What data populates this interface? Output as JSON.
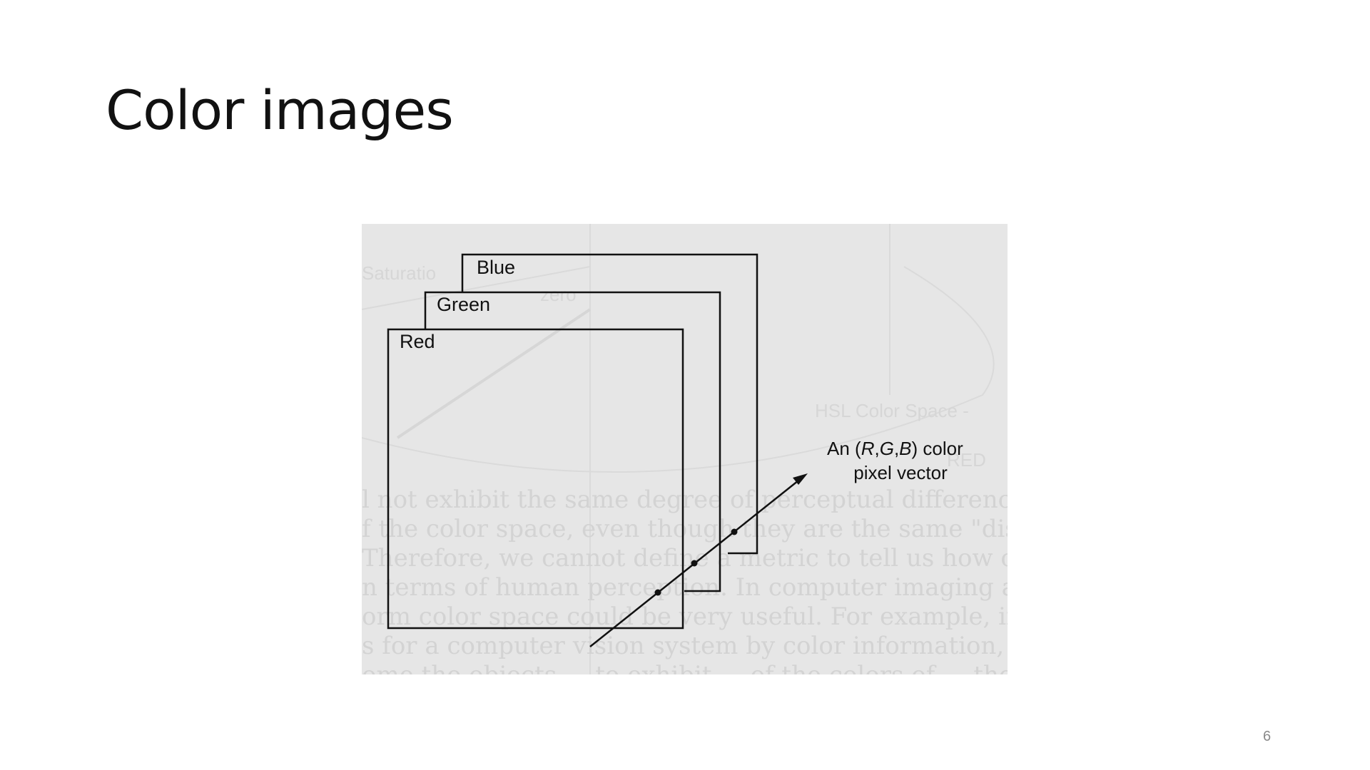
{
  "slide": {
    "title": "Color images",
    "page_number": "6"
  },
  "figure": {
    "planes": [
      {
        "label": "Blue"
      },
      {
        "label": "Green"
      },
      {
        "label": "Red"
      }
    ],
    "vector_label": {
      "prefix": "An (",
      "r": "R",
      "c1": ",",
      "g": "G",
      "c2": ",",
      "b": "B",
      "suffix": ") color",
      "line2": "pixel vector"
    },
    "background_scan": {
      "labels": [
        "Saturatio",
        "zero",
        "HSL Color Space -",
        "RED"
      ],
      "text_lines": [
        "l not exhibit the same degree of perceptual difference as",
        "f the color space, even though they are the same \"distanc",
        "Therefore, we cannot define a metric to tell us how close,",
        "n terms of human perception. In computer imaging applic",
        "orm color space could be very useful. For example, if we",
        "s for a computer vision system by color information, w",
        "ome the objects ... to exhibit ... of the colors of ... the"
      ]
    },
    "colors": {
      "figure_background": "#e6e6e6",
      "line": "#111111",
      "faded_text": "#d3d3d3"
    }
  }
}
